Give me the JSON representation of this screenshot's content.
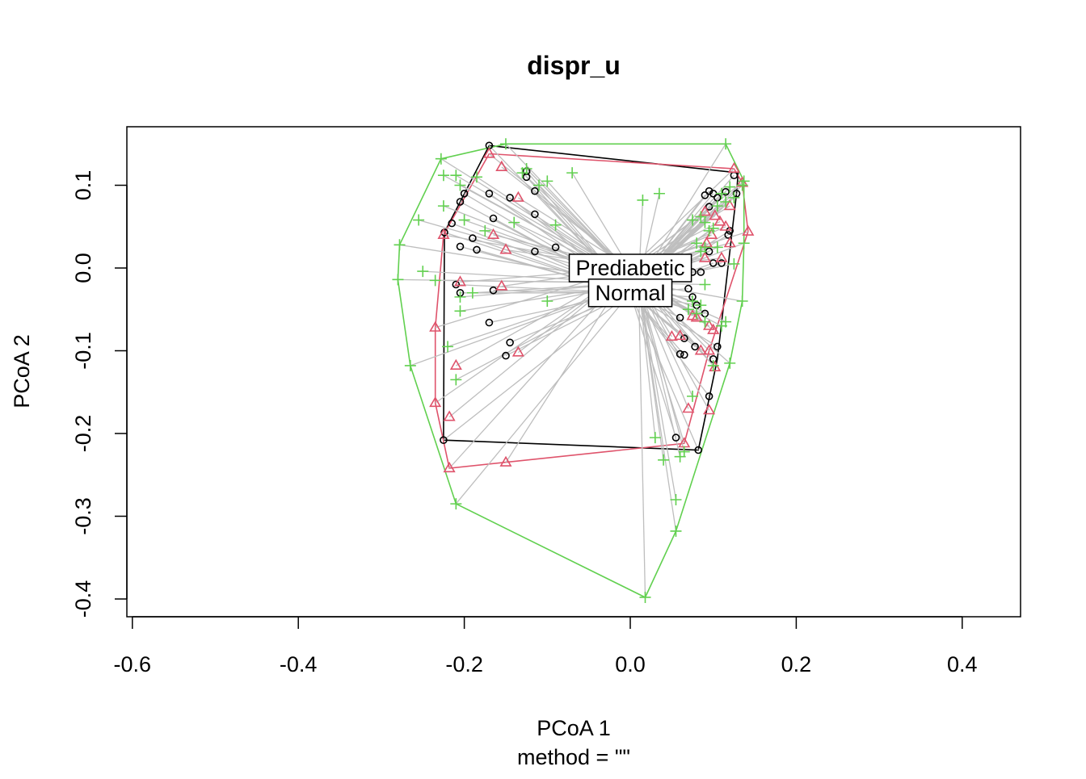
{
  "chart_data": {
    "type": "scatter",
    "title": "dispr_u",
    "xlabel": "PCoA 1",
    "ylabel": "PCoA 2",
    "sublabel": "method = \"\"",
    "xlim": [
      -0.6,
      0.45
    ],
    "ylim": [
      -0.4,
      0.17
    ],
    "x_ticks": [
      -0.6,
      -0.4,
      -0.2,
      0.0,
      0.2,
      0.4
    ],
    "x_tick_labels": [
      "-0.6",
      "-0.4",
      "-0.2",
      "0.0",
      "0.2",
      "0.4"
    ],
    "y_ticks": [
      -0.4,
      -0.3,
      -0.2,
      -0.1,
      0.0,
      0.1
    ],
    "y_tick_labels": [
      "-0.4",
      "-0.3",
      "-0.2",
      "-0.1",
      "0.0",
      "0.1"
    ],
    "grid": false,
    "spider_color": "#bebebe",
    "groups": [
      {
        "name": "Normal",
        "color": "#000000",
        "marker": "circle",
        "centroid": [
          0.0,
          -0.03
        ],
        "hull": [
          [
            -0.17,
            0.148
          ],
          [
            0.13,
            0.115
          ],
          [
            0.128,
            0.09
          ],
          [
            0.105,
            -0.11
          ],
          [
            0.082,
            -0.22
          ],
          [
            -0.225,
            -0.208
          ],
          [
            -0.224,
            0.043
          ]
        ],
        "points": [
          [
            -0.17,
            0.148
          ],
          [
            -0.125,
            0.117
          ],
          [
            -0.125,
            0.11
          ],
          [
            -0.115,
            0.093
          ],
          [
            -0.2,
            0.09
          ],
          [
            -0.17,
            0.09
          ],
          [
            -0.145,
            0.085
          ],
          [
            -0.205,
            0.08
          ],
          [
            -0.115,
            0.065
          ],
          [
            -0.165,
            0.06
          ],
          [
            -0.215,
            0.054
          ],
          [
            -0.224,
            0.043
          ],
          [
            -0.19,
            0.036
          ],
          [
            -0.205,
            0.026
          ],
          [
            -0.185,
            0.022
          ],
          [
            -0.115,
            0.02
          ],
          [
            -0.09,
            0.025
          ],
          [
            -0.21,
            -0.02
          ],
          [
            -0.205,
            -0.03
          ],
          [
            -0.165,
            -0.027
          ],
          [
            -0.17,
            -0.066
          ],
          [
            -0.145,
            -0.09
          ],
          [
            -0.15,
            -0.106
          ],
          [
            0.09,
            0.088
          ],
          [
            0.095,
            0.093
          ],
          [
            0.1,
            0.09
          ],
          [
            0.105,
            0.085
          ],
          [
            0.115,
            0.092
          ],
          [
            0.125,
            0.112
          ],
          [
            0.128,
            0.09
          ],
          [
            0.095,
            0.074
          ],
          [
            0.118,
            0.04
          ],
          [
            0.12,
            0.045
          ],
          [
            0.095,
            0.02
          ],
          [
            0.1,
            0.006
          ],
          [
            0.11,
            0.006
          ],
          [
            0.085,
            -0.005
          ],
          [
            0.075,
            -0.005
          ],
          [
            0.07,
            -0.025
          ],
          [
            0.075,
            -0.035
          ],
          [
            0.08,
            -0.045
          ],
          [
            0.09,
            -0.055
          ],
          [
            0.06,
            -0.06
          ],
          [
            0.065,
            -0.085
          ],
          [
            0.078,
            -0.095
          ],
          [
            0.065,
            -0.105
          ],
          [
            0.06,
            -0.104
          ],
          [
            0.1,
            -0.11
          ],
          [
            0.105,
            -0.095
          ],
          [
            0.095,
            -0.155
          ],
          [
            0.082,
            -0.22
          ],
          [
            0.055,
            -0.205
          ],
          [
            -0.225,
            -0.208
          ]
        ]
      },
      {
        "name": "Prediabetic",
        "color": "#df536b",
        "marker": "triangle",
        "centroid": [
          0.0,
          0.0
        ],
        "hull": [
          [
            -0.17,
            0.138
          ],
          [
            0.125,
            0.12
          ],
          [
            0.135,
            0.103
          ],
          [
            0.142,
            0.044
          ],
          [
            0.095,
            -0.1
          ],
          [
            0.065,
            -0.212
          ],
          [
            -0.218,
            -0.242
          ],
          [
            -0.235,
            -0.163
          ],
          [
            -0.235,
            -0.072
          ],
          [
            -0.225,
            0.04
          ]
        ],
        "points": [
          [
            -0.17,
            0.138
          ],
          [
            -0.155,
            0.122
          ],
          [
            -0.135,
            0.085
          ],
          [
            -0.165,
            0.04
          ],
          [
            -0.15,
            0.022
          ],
          [
            -0.225,
            0.04
          ],
          [
            -0.205,
            -0.017
          ],
          [
            -0.155,
            -0.022
          ],
          [
            -0.235,
            -0.072
          ],
          [
            -0.135,
            -0.102
          ],
          [
            -0.21,
            -0.118
          ],
          [
            -0.235,
            -0.163
          ],
          [
            -0.218,
            -0.18
          ],
          [
            -0.218,
            -0.242
          ],
          [
            -0.15,
            -0.235
          ],
          [
            0.125,
            0.12
          ],
          [
            0.135,
            0.103
          ],
          [
            0.12,
            0.075
          ],
          [
            0.102,
            0.063
          ],
          [
            0.09,
            0.068
          ],
          [
            0.115,
            0.05
          ],
          [
            0.108,
            0.056
          ],
          [
            0.142,
            0.044
          ],
          [
            0.098,
            0.04
          ],
          [
            0.092,
            0.03
          ],
          [
            0.12,
            0.03
          ],
          [
            0.09,
            0.012
          ],
          [
            0.11,
            0.012
          ],
          [
            0.08,
            -0.06
          ],
          [
            0.075,
            -0.058
          ],
          [
            0.095,
            -0.07
          ],
          [
            0.1,
            -0.075
          ],
          [
            0.06,
            -0.082
          ],
          [
            0.05,
            -0.083
          ],
          [
            0.085,
            -0.1
          ],
          [
            0.095,
            -0.1
          ],
          [
            0.102,
            -0.12
          ],
          [
            0.07,
            -0.17
          ],
          [
            0.095,
            -0.172
          ],
          [
            0.065,
            -0.212
          ]
        ]
      },
      {
        "name": "",
        "color": "#61d04f",
        "marker": "plus",
        "centroid": [
          0.01,
          -0.018
        ],
        "hull": [
          [
            -0.15,
            0.15
          ],
          [
            0.115,
            0.15
          ],
          [
            0.137,
            0.105
          ],
          [
            0.137,
            0.03
          ],
          [
            0.135,
            -0.04
          ],
          [
            0.12,
            -0.115
          ],
          [
            0.055,
            -0.318
          ],
          [
            0.018,
            -0.398
          ],
          [
            -0.21,
            -0.285
          ],
          [
            -0.265,
            -0.118
          ],
          [
            -0.28,
            -0.014
          ],
          [
            -0.278,
            0.028
          ],
          [
            -0.228,
            0.132
          ]
        ],
        "points": [
          [
            -0.15,
            0.15
          ],
          [
            -0.228,
            0.132
          ],
          [
            -0.225,
            0.112
          ],
          [
            -0.21,
            0.112
          ],
          [
            -0.205,
            0.1
          ],
          [
            -0.185,
            0.11
          ],
          [
            -0.13,
            0.115
          ],
          [
            -0.125,
            0.12
          ],
          [
            -0.1,
            0.105
          ],
          [
            -0.11,
            0.1
          ],
          [
            -0.07,
            0.115
          ],
          [
            -0.225,
            0.075
          ],
          [
            -0.255,
            0.058
          ],
          [
            -0.2,
            0.058
          ],
          [
            -0.175,
            0.045
          ],
          [
            -0.14,
            0.055
          ],
          [
            -0.09,
            0.052
          ],
          [
            -0.278,
            0.028
          ],
          [
            -0.25,
            -0.004
          ],
          [
            -0.28,
            -0.014
          ],
          [
            -0.235,
            -0.015
          ],
          [
            -0.205,
            -0.035
          ],
          [
            -0.19,
            -0.03
          ],
          [
            -0.1,
            -0.04
          ],
          [
            -0.205,
            -0.052
          ],
          [
            -0.22,
            -0.095
          ],
          [
            -0.265,
            -0.118
          ],
          [
            -0.21,
            -0.135
          ],
          [
            -0.21,
            -0.285
          ],
          [
            0.115,
            0.15
          ],
          [
            0.137,
            0.105
          ],
          [
            0.135,
            0.1
          ],
          [
            0.12,
            0.098
          ],
          [
            0.11,
            0.09
          ],
          [
            0.125,
            0.085
          ],
          [
            0.115,
            0.08
          ],
          [
            0.105,
            0.075
          ],
          [
            0.035,
            0.09
          ],
          [
            0.015,
            0.082
          ],
          [
            0.075,
            0.058
          ],
          [
            0.085,
            0.062
          ],
          [
            0.09,
            0.055
          ],
          [
            0.1,
            0.048
          ],
          [
            0.095,
            0.045
          ],
          [
            0.08,
            0.03
          ],
          [
            0.09,
            0.025
          ],
          [
            0.105,
            0.025
          ],
          [
            0.085,
            0.02
          ],
          [
            0.137,
            0.03
          ],
          [
            0.125,
            0.005
          ],
          [
            0.09,
            -0.02
          ],
          [
            0.075,
            -0.04
          ],
          [
            0.085,
            -0.045
          ],
          [
            0.135,
            -0.04
          ],
          [
            0.07,
            -0.05
          ],
          [
            0.08,
            -0.055
          ],
          [
            0.09,
            -0.065
          ],
          [
            0.115,
            -0.065
          ],
          [
            0.12,
            -0.115
          ],
          [
            0.1,
            -0.118
          ],
          [
            0.11,
            -0.07
          ],
          [
            0.075,
            -0.155
          ],
          [
            0.03,
            -0.205
          ],
          [
            0.065,
            -0.222
          ],
          [
            0.06,
            -0.228
          ],
          [
            0.04,
            -0.232
          ],
          [
            0.055,
            -0.28
          ],
          [
            0.055,
            -0.318
          ],
          [
            0.018,
            -0.398
          ]
        ]
      }
    ],
    "centroid_labels": [
      {
        "text": "Prediabetic",
        "x": 0.0,
        "y": 0.0
      },
      {
        "text": "Normal",
        "x": 0.0,
        "y": -0.03
      }
    ]
  }
}
